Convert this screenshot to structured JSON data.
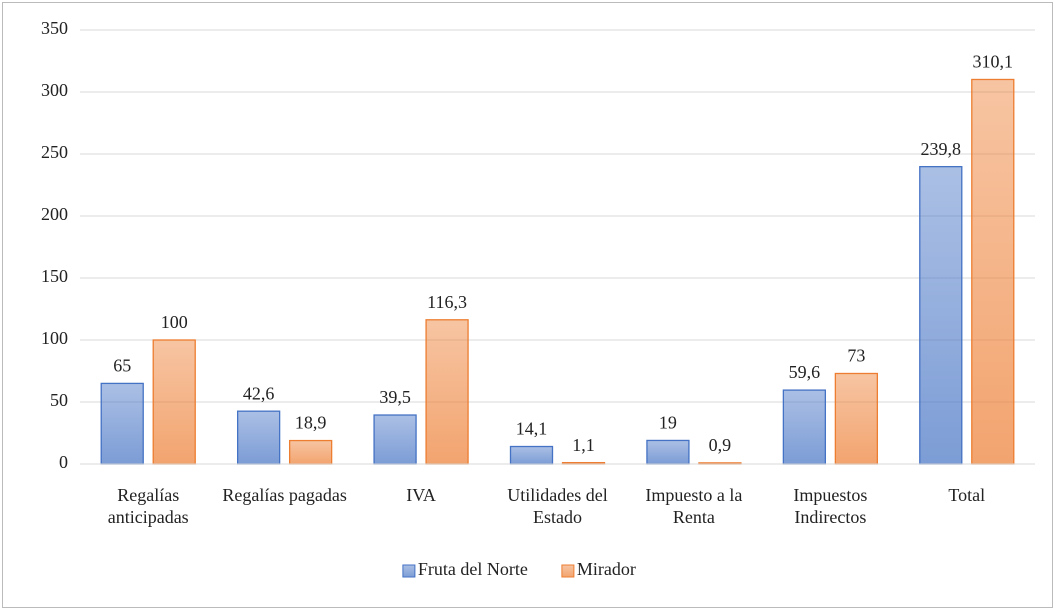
{
  "chart_data": {
    "type": "bar",
    "categories": [
      "Regalías anticipadas",
      "Regalías pagadas",
      "IVA",
      "Utilidades del Estado",
      "Impuesto a la Renta",
      "Impuestos Indirectos",
      "Total"
    ],
    "series": [
      {
        "name": "Fruta del Norte",
        "color": "#4472c4",
        "values": [
          65,
          42.6,
          39.5,
          14.1,
          19,
          59.6,
          239.8
        ],
        "value_labels": [
          "65",
          "42,6",
          "39,5",
          "14,1",
          "19",
          "59,6",
          "239,8"
        ]
      },
      {
        "name": "Mirador",
        "color": "#ed7d31",
        "values": [
          100,
          18.9,
          116.3,
          1.1,
          0.9,
          73,
          310.1
        ],
        "value_labels": [
          "100",
          "18,9",
          "116,3",
          "1,1",
          "0,9",
          "73",
          "310,1"
        ]
      }
    ],
    "ylim": [
      0,
      350
    ],
    "yticks": [
      0,
      50,
      100,
      150,
      200,
      250,
      300,
      350
    ],
    "grid": true,
    "legend": "bottom"
  }
}
